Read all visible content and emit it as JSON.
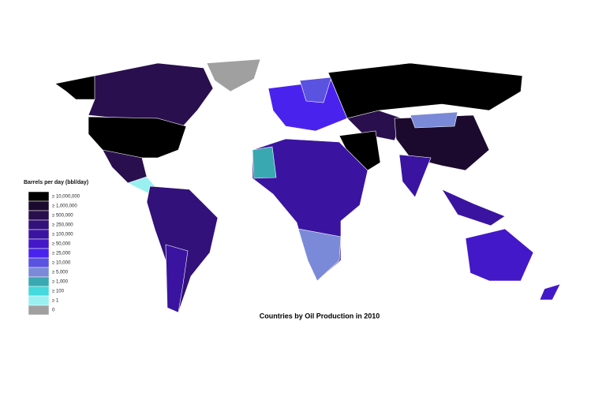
{
  "map": {
    "title": "Countries by Oil Production in 2010",
    "legend": {
      "title": "Barrels per day (bbl/day)",
      "items": [
        {
          "label": "≥ 10,000,000",
          "color": "#000000"
        },
        {
          "label": "≥ 1,000,000",
          "color": "#1c0a2e"
        },
        {
          "label": "≥ 500,000",
          "color": "#2a0f4e"
        },
        {
          "label": "≥ 250,000",
          "color": "#32117a"
        },
        {
          "label": "≥ 100,000",
          "color": "#3a14a0"
        },
        {
          "label": "≥ 50,000",
          "color": "#4318c8"
        },
        {
          "label": "≥ 25,000",
          "color": "#4a22ee"
        },
        {
          "label": "≥ 10,000",
          "color": "#5a52e0"
        },
        {
          "label": "≥ 5,000",
          "color": "#7a8ad8"
        },
        {
          "label": "≥ 1,000",
          "color": "#3aa8b0"
        },
        {
          "label": "≥ 100",
          "color": "#45d8dc"
        },
        {
          "label": "≥ 1",
          "color": "#9af0f0"
        },
        {
          "label": "0",
          "color": "#a0a0a0"
        }
      ]
    }
  }
}
